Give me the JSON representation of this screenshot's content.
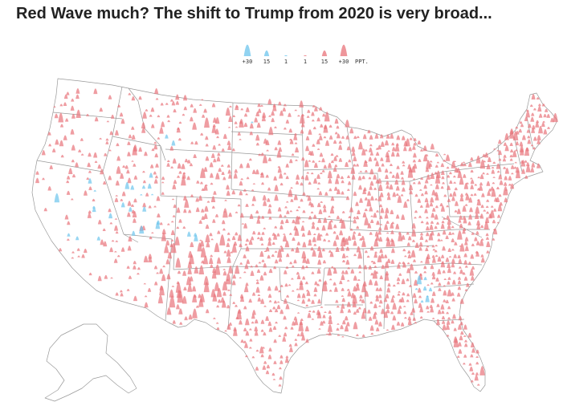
{
  "title": "Red Wave much? The shift to Trump from 2020 is very broad...",
  "legend": {
    "items": [
      {
        "label": "+30",
        "party": "dem",
        "magnitude": 30
      },
      {
        "label": "15",
        "party": "dem",
        "magnitude": 15
      },
      {
        "label": "1",
        "party": "dem",
        "magnitude": 1
      },
      {
        "label": "1",
        "party": "rep",
        "magnitude": 1
      },
      {
        "label": "15",
        "party": "rep",
        "magnitude": 15
      },
      {
        "label": "+30",
        "party": "rep",
        "magnitude": 30
      }
    ],
    "unit": "PPT."
  },
  "colors": {
    "rep": "#e8737a",
    "dem": "#6cc4ec",
    "outline": "#999999",
    "title": "#222222"
  }
}
